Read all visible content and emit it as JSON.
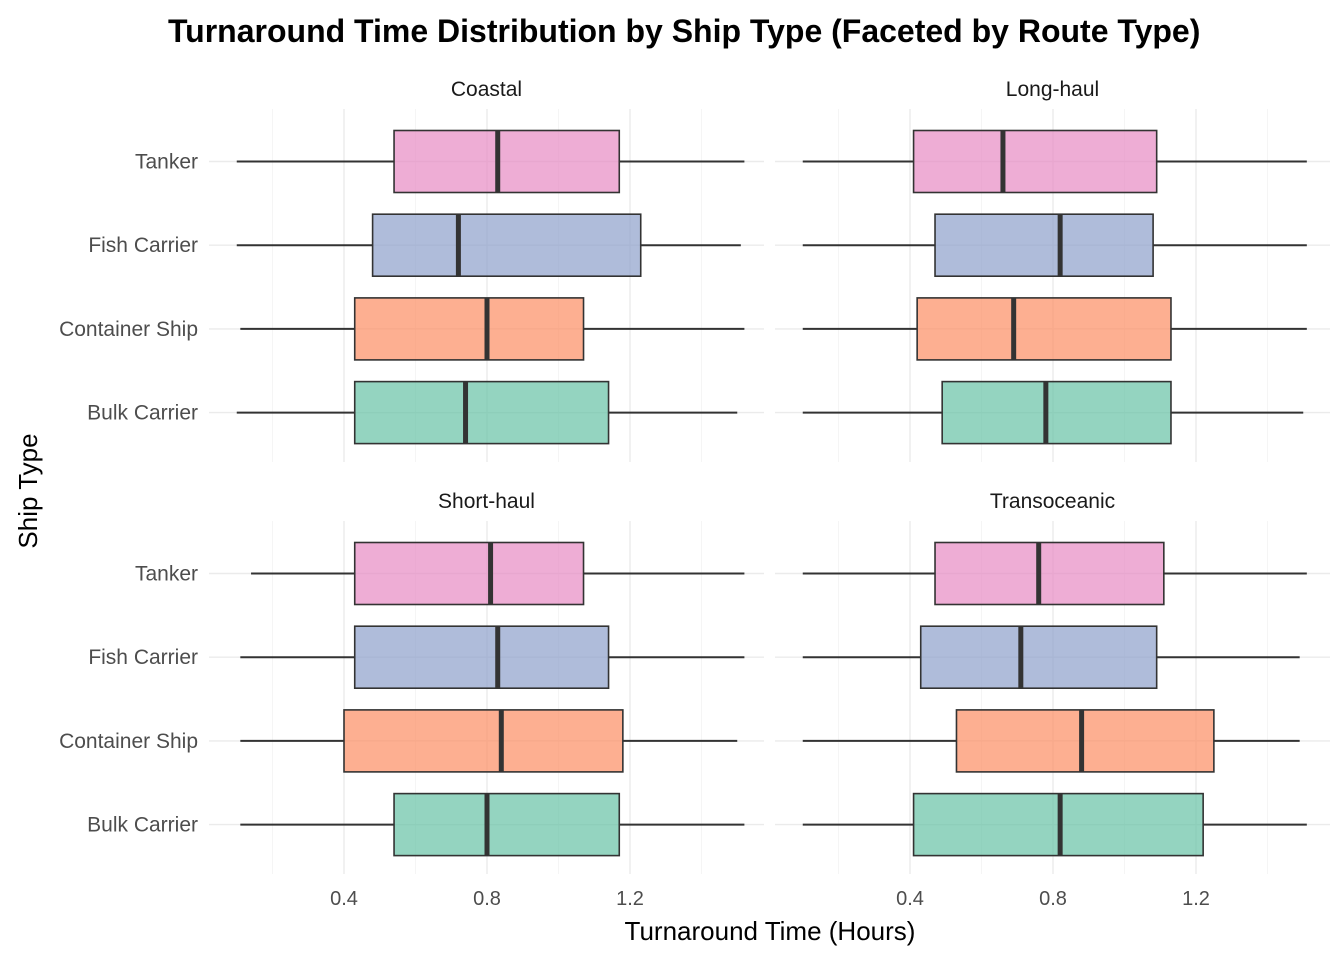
{
  "chart_data": {
    "type": "boxplot",
    "title": "Turnaround Time Distribution by Ship Type (Faceted by Route Type)",
    "xlabel": "Turnaround Time (Hours)",
    "ylabel": "Ship Type",
    "xlim": [
      0.1,
      1.6
    ],
    "xticks": [
      0.4,
      0.8,
      1.2
    ],
    "xtick_labels": [
      "0.4",
      "0.8",
      "1.2"
    ],
    "grid": true,
    "legend": "none",
    "categories": [
      "Tanker",
      "Fish Carrier",
      "Container Ship",
      "Bulk Carrier"
    ],
    "colors": {
      "Tanker": "#E78AC3",
      "Fish Carrier": "#8DA0CB",
      "Container Ship": "#FC8D62",
      "Bulk Carrier": "#66C2A5"
    },
    "box_opacity": 0.7,
    "facets": [
      {
        "name": "Coastal",
        "boxes": [
          {
            "category": "Tanker",
            "min": 0.1,
            "q1": 0.54,
            "median": 0.83,
            "q3": 1.17,
            "max": 1.52
          },
          {
            "category": "Fish Carrier",
            "min": 0.1,
            "q1": 0.48,
            "median": 0.72,
            "q3": 1.23,
            "max": 1.51
          },
          {
            "category": "Container Ship",
            "min": 0.11,
            "q1": 0.43,
            "median": 0.8,
            "q3": 1.07,
            "max": 1.52
          },
          {
            "category": "Bulk Carrier",
            "min": 0.1,
            "q1": 0.43,
            "median": 0.74,
            "q3": 1.14,
            "max": 1.5
          }
        ]
      },
      {
        "name": "Long-haul",
        "boxes": [
          {
            "category": "Tanker",
            "min": 0.1,
            "q1": 0.41,
            "median": 0.66,
            "q3": 1.09,
            "max": 1.51
          },
          {
            "category": "Fish Carrier",
            "min": 0.1,
            "q1": 0.47,
            "median": 0.82,
            "q3": 1.08,
            "max": 1.51
          },
          {
            "category": "Container Ship",
            "min": 0.1,
            "q1": 0.42,
            "median": 0.69,
            "q3": 1.13,
            "max": 1.51
          },
          {
            "category": "Bulk Carrier",
            "min": 0.1,
            "q1": 0.49,
            "median": 0.78,
            "q3": 1.13,
            "max": 1.5
          }
        ]
      },
      {
        "name": "Short-haul",
        "boxes": [
          {
            "category": "Tanker",
            "min": 0.14,
            "q1": 0.43,
            "median": 0.81,
            "q3": 1.07,
            "max": 1.52
          },
          {
            "category": "Fish Carrier",
            "min": 0.11,
            "q1": 0.43,
            "median": 0.83,
            "q3": 1.14,
            "max": 1.52
          },
          {
            "category": "Container Ship",
            "min": 0.11,
            "q1": 0.4,
            "median": 0.84,
            "q3": 1.18,
            "max": 1.5
          },
          {
            "category": "Bulk Carrier",
            "min": 0.11,
            "q1": 0.54,
            "median": 0.8,
            "q3": 1.17,
            "max": 1.52
          }
        ]
      },
      {
        "name": "Transoceanic",
        "boxes": [
          {
            "category": "Tanker",
            "min": 0.1,
            "q1": 0.47,
            "median": 0.76,
            "q3": 1.11,
            "max": 1.51
          },
          {
            "category": "Fish Carrier",
            "min": 0.1,
            "q1": 0.43,
            "median": 0.71,
            "q3": 1.09,
            "max": 1.49
          },
          {
            "category": "Container Ship",
            "min": 0.1,
            "q1": 0.53,
            "median": 0.88,
            "q3": 1.25,
            "max": 1.49
          },
          {
            "category": "Bulk Carrier",
            "min": 0.1,
            "q1": 0.41,
            "median": 0.82,
            "q3": 1.22,
            "max": 1.51
          }
        ]
      }
    ]
  }
}
